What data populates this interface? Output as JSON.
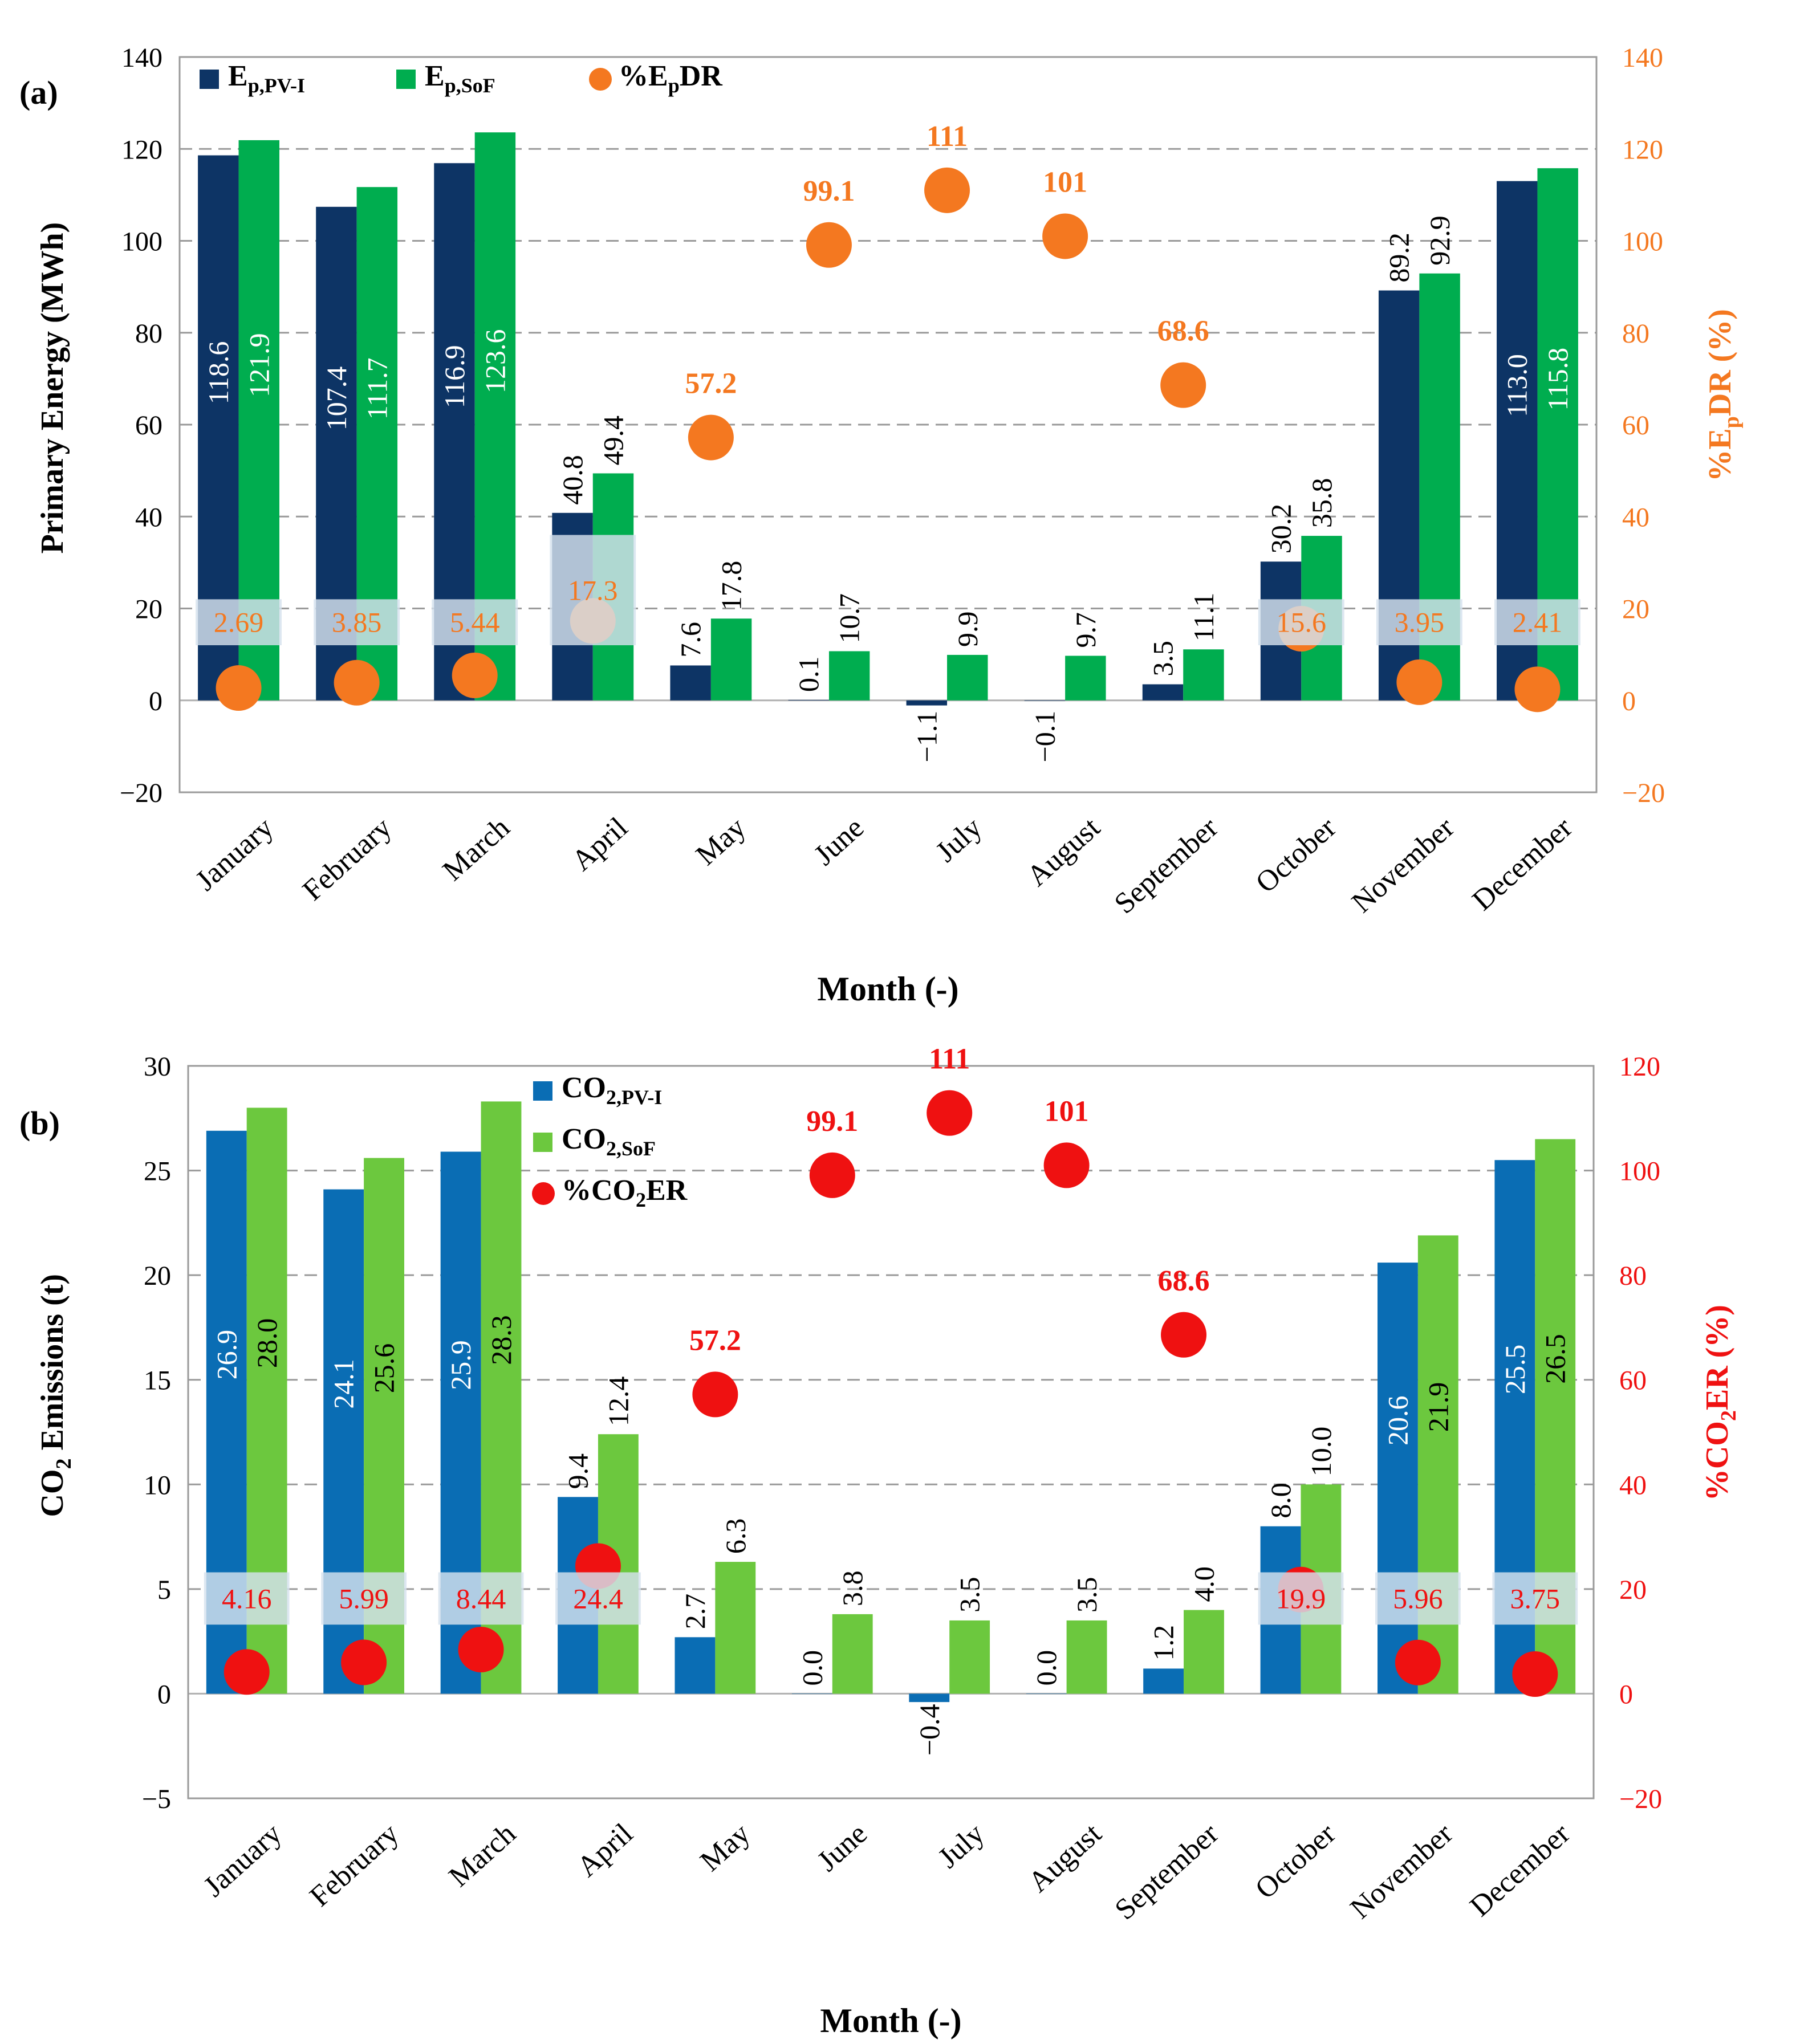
{
  "months": [
    "January",
    "February",
    "March",
    "April",
    "May",
    "June",
    "July",
    "August",
    "September",
    "October",
    "November",
    "December"
  ],
  "colors": {
    "pvi_a": "#0d3465",
    "sof_a": "#00ad4f",
    "pct_a": "#f47820",
    "pvi_b": "#0a6db4",
    "sof_b": "#6cc83e",
    "pct_b": "#ef1111",
    "label_box": "#d6e2ee",
    "grid": "#9a9a9a"
  },
  "chart_data": [
    {
      "panel": "(a)",
      "type": "bar",
      "ylabel": "Primary Energy (MWh)",
      "ylabel_secondary_parts": [
        "%E",
        "p",
        "DR (%)"
      ],
      "xlabel": "Month (-)",
      "ylim": [
        -20,
        140
      ],
      "yticks": [
        "−20",
        "0",
        "20",
        "40",
        "60",
        "80",
        "100",
        "120",
        "140"
      ],
      "ylim_secondary": [
        -20,
        140
      ],
      "yticks_secondary": [
        "−20",
        "0",
        "20",
        "40",
        "60",
        "80",
        "100",
        "120",
        "140"
      ],
      "legend": [
        {
          "main": "E",
          "sub": "p,PV-I"
        },
        {
          "main": "E",
          "sub": "p,SoF"
        },
        {
          "pre": "%E",
          "sub": "p",
          "post": "DR"
        }
      ],
      "series": [
        {
          "name": "Ep,PV-I",
          "values": [
            118.6,
            107.4,
            116.9,
            40.8,
            7.6,
            0.1,
            -1.1,
            -0.1,
            3.5,
            30.2,
            89.2,
            113.0
          ],
          "labels": [
            "118.6",
            "107.4",
            "116.9",
            "40.8",
            "7.6",
            "0.1",
            "−1.1",
            "−0.1",
            "3.5",
            "30.2",
            "89.2",
            "113.0"
          ]
        },
        {
          "name": "Ep,SoF",
          "values": [
            121.9,
            111.7,
            123.6,
            49.4,
            17.8,
            10.7,
            9.9,
            9.7,
            11.1,
            35.8,
            92.9,
            115.8
          ],
          "labels": [
            "121.9",
            "111.7",
            "123.6",
            "49.4",
            "17.8",
            "10.7",
            "9.9",
            "9.7",
            "11.1",
            "35.8",
            "92.9",
            "115.8"
          ]
        },
        {
          "name": "%EpDR",
          "values": [
            2.69,
            3.85,
            5.44,
            17.3,
            57.2,
            99.1,
            111,
            101,
            68.6,
            15.6,
            3.95,
            2.41
          ],
          "labels": [
            "2.69",
            "3.85",
            "5.44",
            "17.3",
            "57.2",
            "99.1",
            "111",
            "101",
            "68.6",
            "15.6",
            "3.95",
            "2.41"
          ]
        }
      ]
    },
    {
      "panel": "(b)",
      "type": "bar",
      "ylabel_parts": [
        "CO",
        "2",
        " Emissions (t)"
      ],
      "ylabel_secondary_parts": [
        "%CO",
        "2",
        "ER (%)"
      ],
      "xlabel": "Month (-)",
      "ylim": [
        -5,
        30
      ],
      "yticks": [
        "−5",
        "0",
        "5",
        "10",
        "15",
        "20",
        "25",
        "30"
      ],
      "ylim_secondary": [
        -20,
        120
      ],
      "yticks_secondary": [
        "−20",
        "0",
        "20",
        "40",
        "60",
        "80",
        "100",
        "120"
      ],
      "legend": [
        {
          "main": "CO",
          "sub": "2,PV-I"
        },
        {
          "main": "CO",
          "sub": "2,SoF"
        },
        {
          "pre": "%CO",
          "sub": "2",
          "post": "ER"
        }
      ],
      "series": [
        {
          "name": "CO2,PV-I",
          "values": [
            26.9,
            24.1,
            25.9,
            9.4,
            2.7,
            0.0,
            -0.4,
            0.0,
            1.2,
            8.0,
            20.6,
            25.5
          ],
          "labels": [
            "26.9",
            "24.1",
            "25.9",
            "9.4",
            "2.7",
            "0.0",
            "−0.4",
            "0.0",
            "1.2",
            "8.0",
            "20.6",
            "25.5"
          ]
        },
        {
          "name": "CO2,SoF",
          "values": [
            28.0,
            25.6,
            28.3,
            12.4,
            6.3,
            3.8,
            3.5,
            3.5,
            4.0,
            10.0,
            21.9,
            26.5
          ],
          "labels": [
            "28.0",
            "25.6",
            "28.3",
            "12.4",
            "6.3",
            "3.8",
            "3.5",
            "3.5",
            "4.0",
            "10.0",
            "21.9",
            "26.5"
          ]
        },
        {
          "name": "%CO2ER",
          "values": [
            4.16,
            5.99,
            8.44,
            24.4,
            57.2,
            99.1,
            111,
            101,
            68.6,
            19.9,
            5.96,
            3.75
          ],
          "labels": [
            "4.16",
            "5.99",
            "8.44",
            "24.4",
            "57.2",
            "99.1",
            "111",
            "101",
            "68.6",
            "19.9",
            "5.96",
            "3.75"
          ]
        }
      ]
    }
  ]
}
